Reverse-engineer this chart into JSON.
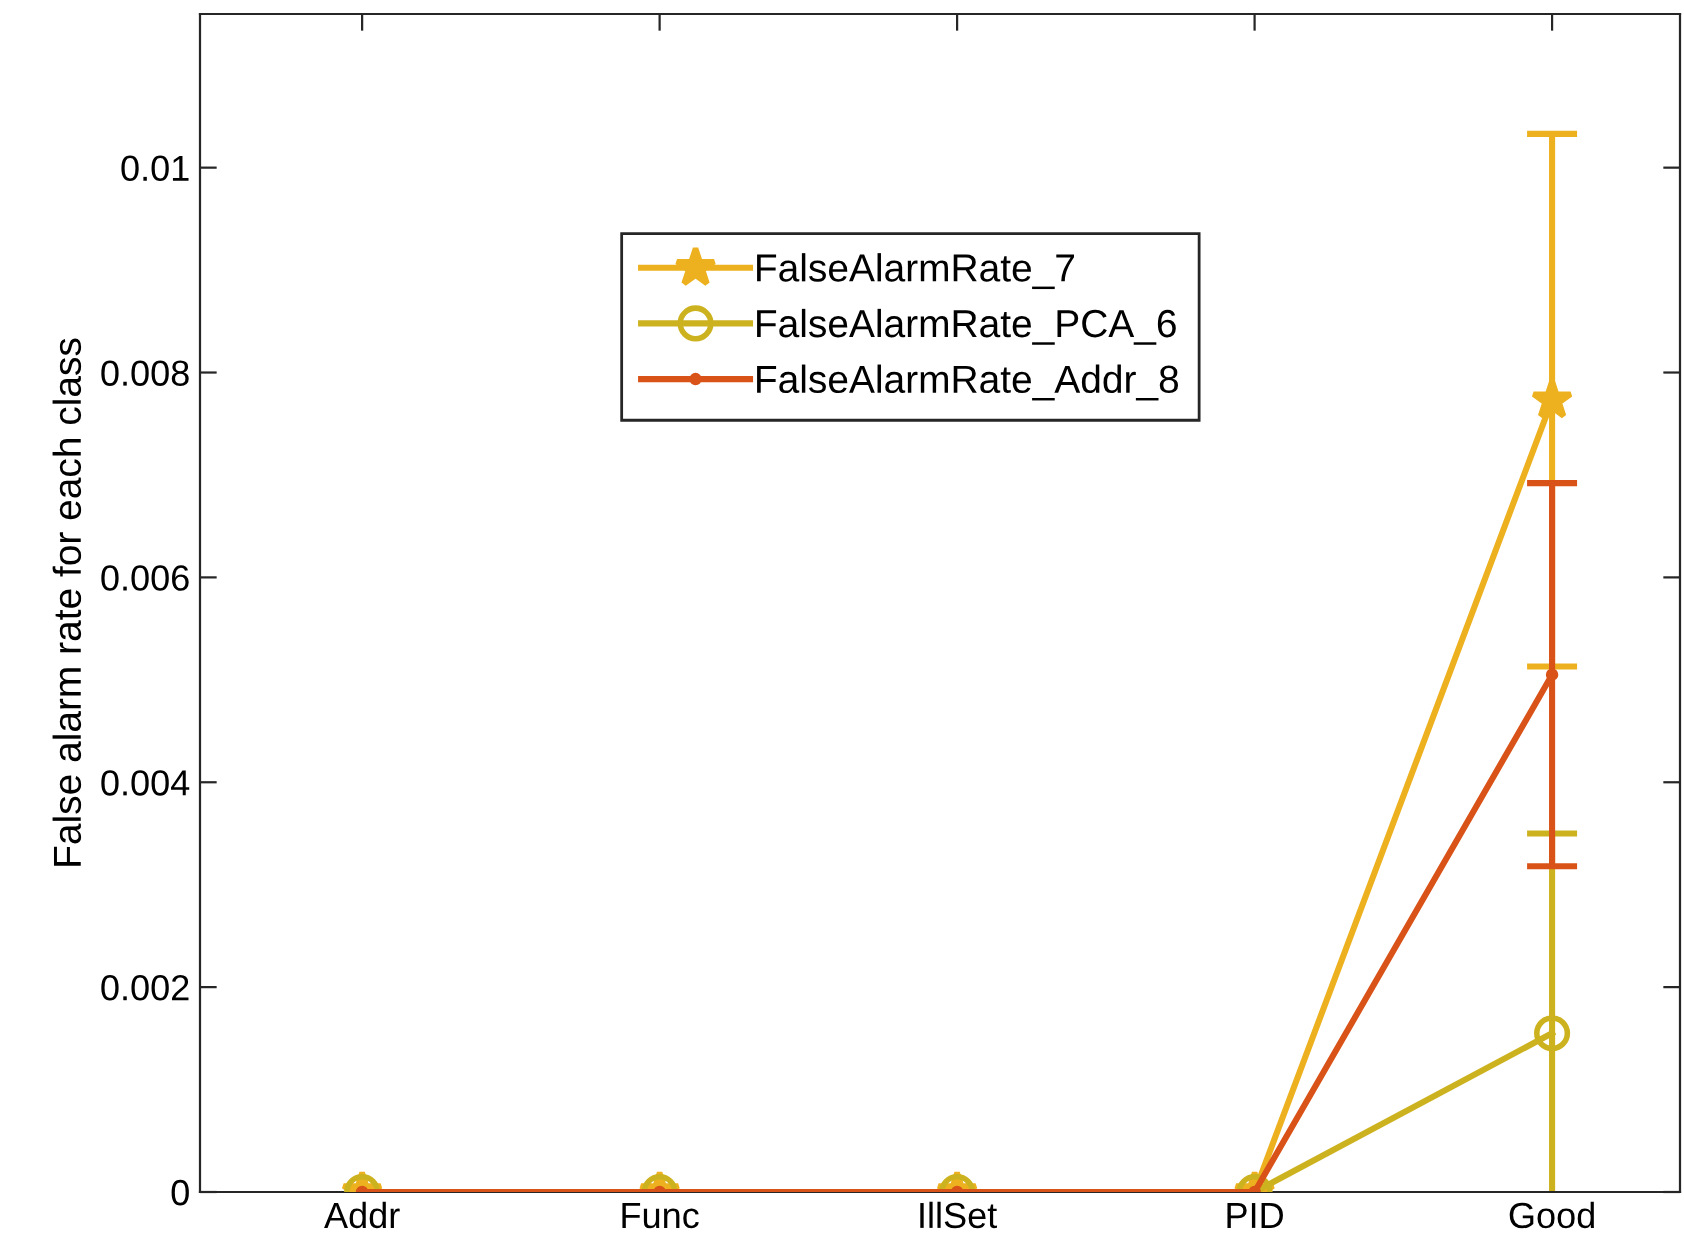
{
  "chart_data": {
    "type": "line",
    "ylabel": "False alarm rate for each class",
    "categories": [
      "Addr",
      "Func",
      "IllSet",
      "PID",
      "Good"
    ],
    "ylim": [
      0,
      0.0115
    ],
    "yticks": [
      0,
      0.002,
      0.004,
      0.006,
      0.008,
      0.01
    ],
    "grid": false,
    "legend": "top",
    "line_style": "solid",
    "series": [
      {
        "name": "FalseAlarmRate_7",
        "color": "#edb120",
        "marker": "star",
        "values": [
          0,
          0,
          0,
          0,
          0.00773
        ],
        "errors": [
          null,
          null,
          null,
          null,
          0.0026
        ]
      },
      {
        "name": "FalseAlarmRate_PCA_6",
        "color": "#cdb21f",
        "marker": "circle",
        "values": [
          0,
          0,
          0,
          0,
          0.00155
        ],
        "errors": [
          null,
          null,
          null,
          null,
          0.00195
        ]
      },
      {
        "name": "FalseAlarmRate_Addr_8",
        "color": "#d95319",
        "marker": "point",
        "values": [
          0,
          0,
          0,
          0,
          0.00505
        ],
        "errors": [
          null,
          null,
          null,
          null,
          0.00187
        ]
      }
    ]
  }
}
